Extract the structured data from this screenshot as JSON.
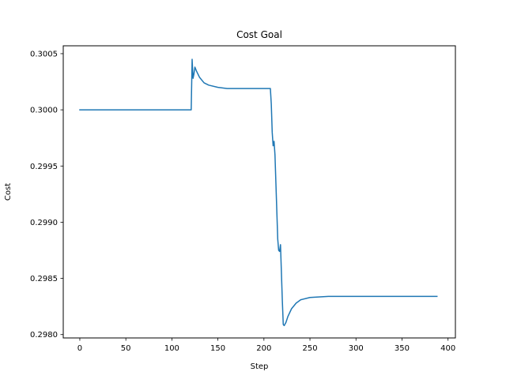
{
  "chart_data": {
    "type": "line",
    "title": "Cost Goal",
    "xlabel": "Step",
    "ylabel": "Cost",
    "xlim": [
      -18,
      408
    ],
    "ylim": [
      0.29797,
      0.30057
    ],
    "xticks": [
      0,
      50,
      100,
      150,
      200,
      250,
      300,
      350,
      400
    ],
    "xtick_labels": [
      "0",
      "50",
      "100",
      "150",
      "200",
      "250",
      "300",
      "350",
      "400"
    ],
    "yticks": [
      0.298,
      0.2985,
      0.299,
      0.2995,
      0.3,
      0.3005
    ],
    "ytick_labels": [
      "0.2980",
      "0.2985",
      "0.2990",
      "0.2995",
      "0.3000",
      "0.3005"
    ],
    "grid": false,
    "series": [
      {
        "color": "#1f77b4",
        "points": [
          [
            0,
            0.3
          ],
          [
            50,
            0.3
          ],
          [
            100,
            0.3
          ],
          [
            121,
            0.3
          ],
          [
            122,
            0.30045
          ],
          [
            123,
            0.30028
          ],
          [
            124,
            0.30032
          ],
          [
            125,
            0.30038
          ],
          [
            127,
            0.30034
          ],
          [
            130,
            0.30029
          ],
          [
            135,
            0.30024
          ],
          [
            140,
            0.30022
          ],
          [
            150,
            0.3002
          ],
          [
            160,
            0.30019
          ],
          [
            180,
            0.30019
          ],
          [
            207,
            0.30019
          ],
          [
            208,
            0.30005
          ],
          [
            209,
            0.2998
          ],
          [
            210,
            0.29968
          ],
          [
            211,
            0.29972
          ],
          [
            212,
            0.2996
          ],
          [
            213,
            0.29935
          ],
          [
            214,
            0.2991
          ],
          [
            215,
            0.29885
          ],
          [
            216,
            0.29875
          ],
          [
            217,
            0.29874
          ],
          [
            218,
            0.2988
          ],
          [
            219,
            0.29855
          ],
          [
            220,
            0.2983
          ],
          [
            221,
            0.29809
          ],
          [
            222,
            0.29808
          ],
          [
            224,
            0.29811
          ],
          [
            226,
            0.29816
          ],
          [
            230,
            0.29823
          ],
          [
            235,
            0.29828
          ],
          [
            240,
            0.29831
          ],
          [
            250,
            0.29833
          ],
          [
            270,
            0.29834
          ],
          [
            300,
            0.29834
          ],
          [
            350,
            0.29834
          ],
          [
            388,
            0.29834
          ]
        ]
      }
    ]
  }
}
